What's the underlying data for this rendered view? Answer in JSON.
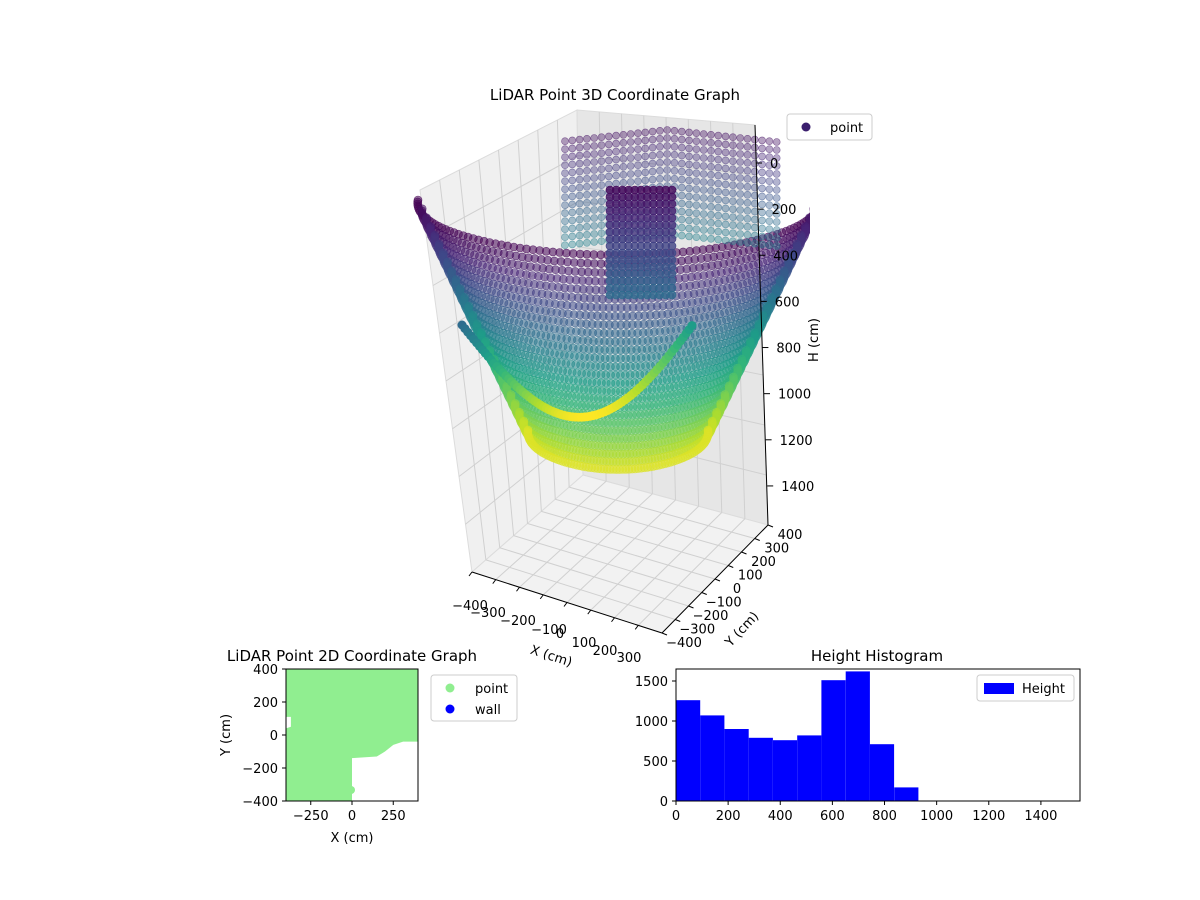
{
  "colors": {
    "point_2d": "#90ee90",
    "wall_2d": "#0000ff",
    "histogram": "#0000ff",
    "legend_3d_marker": "#3b1f6e",
    "colormap": "viridis"
  },
  "chart_data": [
    {
      "type": "scatter",
      "projection": "3d",
      "title": "LiDAR Point 3D Coordinate Graph",
      "xlabel": "X (cm)",
      "ylabel": "Y (cm)",
      "zlabel": "H (cm)",
      "x_ticks": [
        "−400",
        "−300",
        "−200",
        "−100",
        "0",
        "100",
        "200",
        "300"
      ],
      "y_ticks": [
        "−400",
        "−300",
        "−200",
        "−100",
        "0",
        "100",
        "200",
        "300",
        "400"
      ],
      "z_ticks": [
        "0",
        "200",
        "400",
        "600",
        "800",
        "1000",
        "1200",
        "1400"
      ],
      "xlim": [
        -400,
        400
      ],
      "ylim": [
        -400,
        400
      ],
      "zlim": [
        0,
        1500
      ],
      "z_inverted": true,
      "legend": [
        "point"
      ],
      "legend_position": "upper-right",
      "grid": true,
      "shape": "bowl-shaped wall of points around the origin, shallow rim near H=0 with the deepest points near H=900"
    },
    {
      "type": "scatter",
      "title": "LiDAR Point 2D Coordinate Graph",
      "xlabel": "X (cm)",
      "ylabel": "Y (cm)",
      "x_ticks": [
        "−250",
        "0",
        "250"
      ],
      "y_ticks": [
        "400",
        "200",
        "0",
        "−200",
        "−400"
      ],
      "xlim": [
        -400,
        400
      ],
      "ylim": [
        -400,
        400
      ],
      "legend": [
        "point",
        "wall"
      ],
      "legend_position": "outside-right",
      "region_outline": [
        [
          -400,
          400
        ],
        [
          400,
          400
        ],
        [
          400,
          -40
        ],
        [
          310,
          -40
        ],
        [
          250,
          -60
        ],
        [
          200,
          -100
        ],
        [
          150,
          -130
        ],
        [
          0,
          -140
        ],
        [
          0,
          -400
        ],
        [
          -400,
          -400
        ],
        [
          -400,
          40
        ],
        [
          -370,
          50
        ],
        [
          -370,
          110
        ],
        [
          -400,
          110
        ]
      ]
    },
    {
      "type": "bar",
      "subtype": "histogram",
      "title": "Height Histogram",
      "legend": [
        "Height"
      ],
      "legend_position": "upper-right",
      "x_ticks": [
        "0",
        "200",
        "400",
        "600",
        "800",
        "1000",
        "1200",
        "1400"
      ],
      "y_ticks": [
        "0",
        "500",
        "1000",
        "1500"
      ],
      "xlim": [
        0,
        1550
      ],
      "ylim": [
        0,
        1650
      ],
      "bin_width": 93,
      "bins": [
        {
          "start": 0,
          "count": 1260
        },
        {
          "start": 93,
          "count": 1070
        },
        {
          "start": 186,
          "count": 900
        },
        {
          "start": 279,
          "count": 790
        },
        {
          "start": 372,
          "count": 760
        },
        {
          "start": 465,
          "count": 820
        },
        {
          "start": 558,
          "count": 1510
        },
        {
          "start": 651,
          "count": 1620
        },
        {
          "start": 744,
          "count": 710
        },
        {
          "start": 837,
          "count": 170
        },
        {
          "start": 930,
          "count": 0
        }
      ]
    }
  ]
}
